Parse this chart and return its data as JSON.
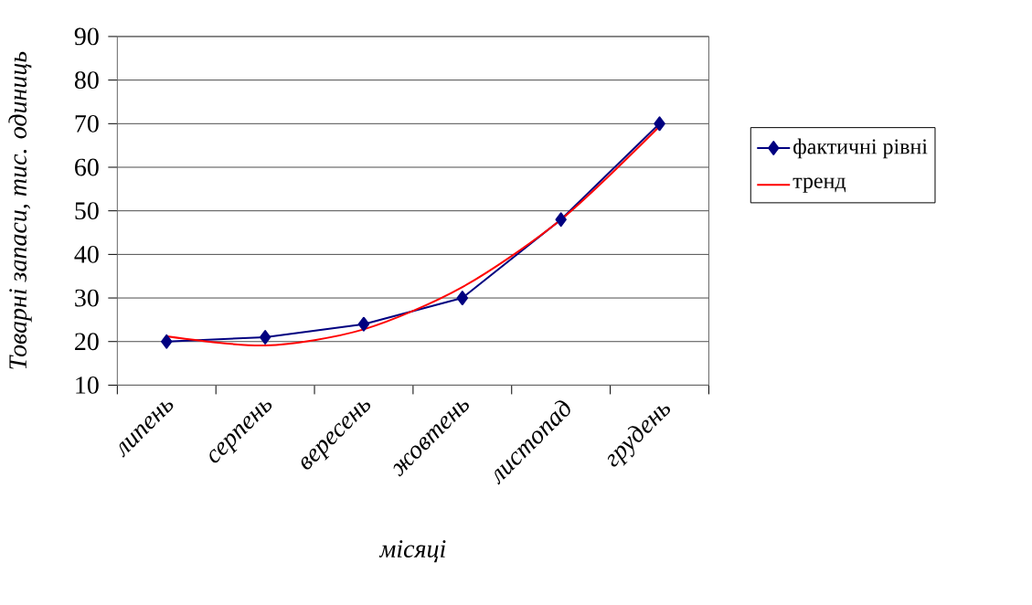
{
  "chart_data": {
    "type": "line",
    "categories": [
      "липень",
      "серпень",
      "вересень",
      "жовтень",
      "листопад",
      "грудень"
    ],
    "series": [
      {
        "name": "фактичні рівні",
        "color": "#000080",
        "marker": "diamond",
        "values": [
          20,
          21,
          24,
          30,
          48,
          70
        ]
      },
      {
        "name": "тренд",
        "color": "#ff0000",
        "type": "line",
        "marker": "none",
        "values": [
          21.2,
          19.1,
          22.8,
          32.5,
          48,
          69.4
        ]
      }
    ],
    "xlabel": "місяці",
    "ylabel": "Товарні запаси, тис. одиниць",
    "ylim": [
      10,
      90
    ],
    "yticks": [
      10,
      20,
      30,
      40,
      50,
      60,
      70,
      80,
      90
    ],
    "grid": "y",
    "legend": "right",
    "line_style": "solid"
  }
}
